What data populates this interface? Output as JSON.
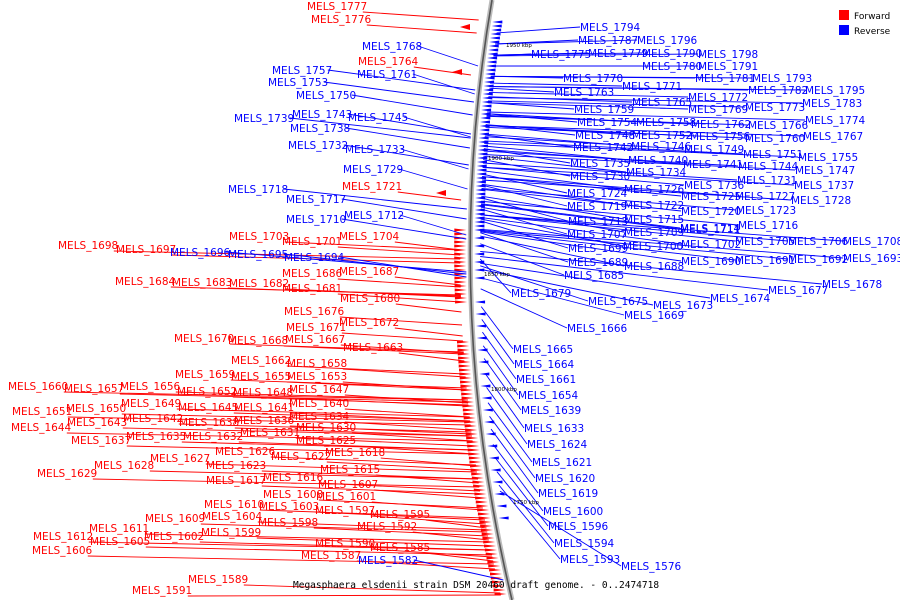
{
  "caption": "Megasphaera elsdenii strain DSM 20460 draft genome. - 0..2474718",
  "legend": [
    {
      "label": "Forward",
      "color": "#ff0000"
    },
    {
      "label": "Reverse",
      "color": "#0000ff"
    }
  ],
  "colors": {
    "forward": "#ff0000",
    "reverse": "#0000ff",
    "backbone": "#888888"
  },
  "ticks": [
    "1950 kbp",
    "1900 kbp",
    "1850 kbp",
    "1800 kbp",
    "1750 kbp"
  ],
  "forward_genes": [
    "MELS_1777",
    "MELS_1776",
    "MELS_1764",
    "MELS_1721",
    "MELS_1698",
    "MELS_1697",
    "MELS_1703",
    "MELS_1701",
    "MELS_1704",
    "MELS_1686",
    "MELS_1687",
    "MELS_1684",
    "MELS_1683",
    "MELS_1682",
    "MELS_1681",
    "MELS_1680",
    "MELS_1676",
    "MELS_1671",
    "MELS_1672",
    "MELS_1670",
    "MELS_1668",
    "MELS_1667",
    "MELS_1663",
    "MELS_1662",
    "MELS_1658",
    "MELS_1659",
    "MELS_1655",
    "MELS_1653",
    "MELS_1660",
    "MELS_1657",
    "MELS_1656",
    "MELS_1652",
    "MELS_1648",
    "MELS_1647",
    "MELS_1651",
    "MELS_1650",
    "MELS_1649",
    "MELS_1645",
    "MELS_1641",
    "MELS_1640",
    "MELS_1644",
    "MELS_1643",
    "MELS_1642",
    "MELS_1638",
    "MELS_1636",
    "MELS_1634",
    "MELS_1637",
    "MELS_1635",
    "MELS_1632",
    "MELS_1631",
    "MELS_1630",
    "MELS_1625",
    "MELS_1626",
    "MELS_1622",
    "MELS_1618",
    "MELS_1629",
    "MELS_1628",
    "MELS_1627",
    "MELS_1623",
    "MELS_1615",
    "MELS_1617",
    "MELS_1616",
    "MELS_1607",
    "MELS_1608",
    "MELS_1601",
    "MELS_1610",
    "MELS_1603",
    "MELS_1609",
    "MELS_1604",
    "MELS_1597",
    "MELS_1595",
    "MELS_1611",
    "MELS_1598",
    "MELS_1612",
    "MELS_1605",
    "MELS_1602",
    "MELS_1599",
    "MELS_1592",
    "MELS_1606",
    "MELS_1590",
    "MELS_1585",
    "MELS_1587",
    "MELS_1589",
    "MELS_1591"
  ],
  "reverse_genes": [
    "MELS_1794",
    "MELS_1787",
    "MELS_1796",
    "MELS_1775",
    "MELS_1779",
    "MELS_1790",
    "MELS_1798",
    "MELS_1780",
    "MELS_1791",
    "MELS_1781",
    "MELS_1793",
    "MELS_1770",
    "MELS_1771",
    "MELS_1782",
    "MELS_1795",
    "MELS_1763",
    "MELS_1772",
    "MELS_1765",
    "MELS_1769",
    "MELS_1773",
    "MELS_1783",
    "MELS_1759",
    "MELS_1774",
    "MELS_1754",
    "MELS_1758",
    "MELS_1762",
    "MELS_1766",
    "MELS_1748",
    "MELS_1752",
    "MELS_1756",
    "MELS_1760",
    "MELS_1767",
    "MELS_1742",
    "MELS_1746",
    "MELS_1749",
    "MELS_1751",
    "MELS_1755",
    "MELS_1735",
    "MELS_1740",
    "MELS_1741",
    "MELS_1744",
    "MELS_1747",
    "MELS_1730",
    "MELS_1734",
    "MELS_1736",
    "MELS_1731",
    "MELS_1737",
    "MELS_1724",
    "MELS_1726",
    "MELS_1725",
    "MELS_1727",
    "MELS_1728",
    "MELS_1719",
    "MELS_1722",
    "MELS_1720",
    "MELS_1723",
    "MELS_1713",
    "MELS_1715",
    "MELS_1714",
    "MELS_1716",
    "MELS_1707",
    "MELS_1709",
    "MELS_1711",
    "MELS_1699",
    "MELS_1700",
    "MELS_1702",
    "MELS_1705",
    "MELS_1706",
    "MELS_1708",
    "MELS_1689",
    "MELS_1688",
    "MELS_1690",
    "MELS_1691",
    "MELS_1692",
    "MELS_1693",
    "MELS_1685",
    "MELS_1679",
    "MELS_1677",
    "MELS_1678",
    "MELS_1675",
    "MELS_1673",
    "MELS_1674",
    "MELS_1669",
    "MELS_1666",
    "MELS_1665",
    "MELS_1664",
    "MELS_1661",
    "MELS_1654",
    "MELS_1639",
    "MELS_1633",
    "MELS_1624",
    "MELS_1621",
    "MELS_1620",
    "MELS_1619",
    "MELS_1600",
    "MELS_1596",
    "MELS_1594",
    "MELS_1593",
    "MELS_1576",
    "MELS_1768",
    "MELS_1757",
    "MELS_1753",
    "MELS_1761",
    "MELS_1750",
    "MELS_1739",
    "MELS_1743",
    "MELS_1745",
    "MELS_1738",
    "MELS_1732",
    "MELS_1733",
    "MELS_1729",
    "MELS_1718",
    "MELS_1717",
    "MELS_1710",
    "MELS_1712",
    "MELS_1696",
    "MELS_1695",
    "MELS_1694",
    "MELS_1582"
  ]
}
